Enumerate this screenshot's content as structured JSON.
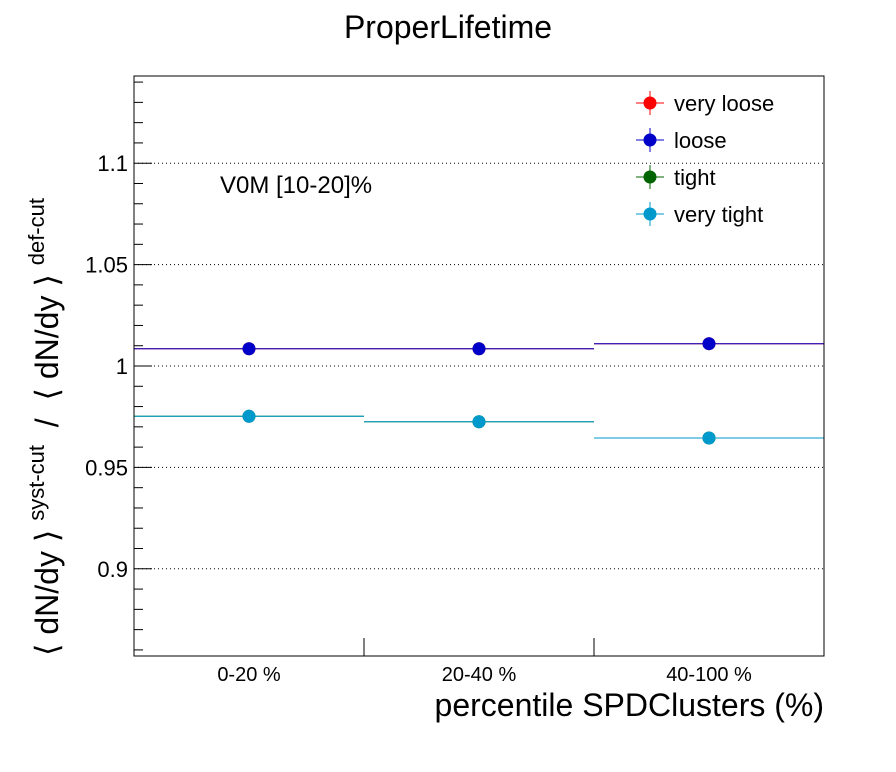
{
  "chart_data": {
    "type": "scatter",
    "title": "ProperLifetime",
    "xlabel": "percentile SPDClusters (%)",
    "ylabel": {
      "base": "⟨ dN/dy ⟩",
      "sup1": "syst-cut",
      "sep": " / ",
      "base2": "⟨ dN/dy ⟩",
      "sup2": "def-cut"
    },
    "categories": [
      "0-20 %",
      "20-40 %",
      "40-100 %"
    ],
    "annotation": "V0M [10-20]%",
    "ylim": [
      0.857,
      1.143
    ],
    "yticks": [
      0.9,
      0.95,
      1,
      1.05,
      1.1
    ],
    "ytick_labels": [
      "0.9",
      "0.95",
      "1",
      "1.05",
      "1.1"
    ],
    "grid": "horizontal dotted at major y ticks",
    "legend_position": "top-right",
    "series": [
      {
        "name": "very loose",
        "color": "#ff0000",
        "values": [
          1.0085,
          1.0085,
          1.011
        ]
      },
      {
        "name": "loose",
        "color": "#0000c8",
        "values": [
          1.0085,
          1.0085,
          1.011
        ]
      },
      {
        "name": "tight",
        "color": "#006400",
        "values": [
          0.9752,
          0.9725,
          0.9645
        ]
      },
      {
        "name": "very tight",
        "color": "#0099cc",
        "values": [
          0.9752,
          0.9725,
          0.9645
        ]
      }
    ]
  }
}
